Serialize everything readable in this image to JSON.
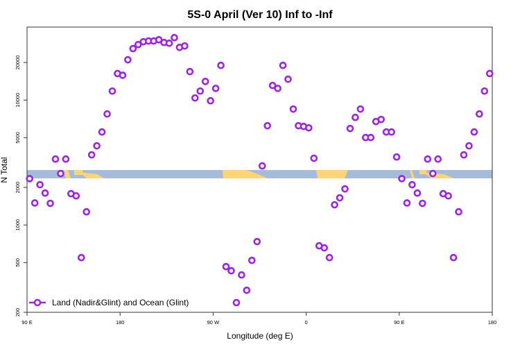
{
  "chart_data": {
    "type": "scatter",
    "title": "5S-0 April (Ver 10)   Inf to -Inf",
    "xlabel": "Longitude (deg E)",
    "ylabel": "N Total",
    "xlim": [
      90,
      540
    ],
    "ylim": [
      200,
      38400
    ],
    "yscale": "log",
    "x_ticks": [
      {
        "v": 90,
        "label": "90 E"
      },
      {
        "v": 180,
        "label": "180"
      },
      {
        "v": 270,
        "label": "90 W"
      },
      {
        "v": 360,
        "label": "0"
      },
      {
        "v": 450,
        "label": "90 E"
      },
      {
        "v": 540,
        "label": "180"
      }
    ],
    "y_ticks": [
      {
        "v": 200,
        "label": "200"
      },
      {
        "v": 500,
        "label": "500"
      },
      {
        "v": 1000,
        "label": "1000"
      },
      {
        "v": 2000,
        "label": "2000"
      },
      {
        "v": 5000,
        "label": "5000"
      },
      {
        "v": 10000,
        "label": "10000"
      },
      {
        "v": 20000,
        "label": "20000"
      }
    ],
    "grid": false,
    "legend": {
      "position": "bottom-left",
      "entries": [
        "Land (Nadir&Glint) and Ocean (Glint)"
      ]
    },
    "series": [
      {
        "name": "Land (Nadir&Glint) and Ocean (Glint)",
        "color": "#a020f0",
        "x_start": 92.5,
        "x_step": 5,
        "values": [
          2350,
          1500,
          2100,
          1800,
          1490,
          3370,
          2580,
          3370,
          1780,
          1710,
          548,
          1275,
          3640,
          4300,
          5550,
          7740,
          11800,
          16300,
          15800,
          21000,
          25800,
          27800,
          29300,
          29700,
          29700,
          30400,
          28900,
          28500,
          31600,
          26400,
          27100,
          16900,
          10400,
          11800,
          14100,
          9870,
          12400,
          18950,
          464,
          430,
          239,
          398,
          300,
          521,
          736,
          2970,
          6230,
          13090,
          12400,
          18950,
          14680,
          8470,
          6230,
          6150,
          5990,
          3420,
          681,
          656,
          548,
          1450,
          1650,
          1945,
          5920,
          7260,
          8470,
          5010,
          5010,
          6730,
          6990,
          5550,
          5550,
          3500,
          2350,
          1500,
          2100,
          1800,
          1490,
          3370,
          2580,
          3370,
          1780,
          1710,
          548,
          1275,
          3640,
          4300,
          5550,
          7740,
          11800,
          16300
        ]
      }
    ],
    "colors": {
      "marker": "#a020f0",
      "ocean_band": "#a4bcda",
      "land_band": "#fdd574"
    }
  }
}
